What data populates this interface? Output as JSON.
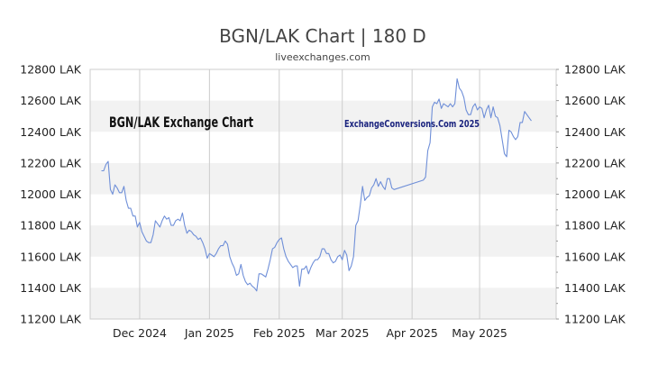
{
  "title": "BGN/LAK Chart | 180 D",
  "subtitle": "liveexchanges.com",
  "watermark_left": "BGN/LAK Exchange Chart",
  "watermark_right": "ExchangeConversions.Com 2025",
  "colors": {
    "line": "#6f8fd8",
    "band": "#f2f2f2",
    "grid": "#cccccc",
    "axis": "#999999"
  },
  "chart_data": {
    "type": "line",
    "title": "BGN/LAK Chart | 180 D",
    "ylim": [
      11200,
      12800
    ],
    "yticks": [
      11200,
      11400,
      11600,
      11800,
      12000,
      12200,
      12400,
      12600,
      12800
    ],
    "ytick_labels": [
      "11200 LAK",
      "11400 LAK",
      "11600 LAK",
      "11800 LAK",
      "12000 LAK",
      "12200 LAK",
      "12400 LAK",
      "12600 LAK",
      "12800 LAK"
    ],
    "xlim": [
      "2024-11-09",
      "2025-06-04"
    ],
    "xticks": [
      {
        "date": "2024-12-01",
        "label": "Dec 2024"
      },
      {
        "date": "2025-01-01",
        "label": "Jan 2025"
      },
      {
        "date": "2025-02-01",
        "label": "Feb 2025"
      },
      {
        "date": "2025-03-01",
        "label": "Mar 2025"
      },
      {
        "date": "2025-04-01",
        "label": "Apr 2025"
      },
      {
        "date": "2025-05-01",
        "label": "May 2025"
      }
    ],
    "grid": true,
    "series": [
      {
        "points": [
          [
            "2024-11-14",
            12150
          ],
          [
            "2024-11-15",
            12150
          ],
          [
            "2024-11-16",
            12190
          ],
          [
            "2024-11-17",
            12210
          ],
          [
            "2024-11-18",
            12030
          ],
          [
            "2024-11-19",
            12000
          ],
          [
            "2024-11-20",
            12060
          ],
          [
            "2024-11-21",
            12040
          ],
          [
            "2024-11-22",
            12010
          ],
          [
            "2024-11-23",
            12010
          ],
          [
            "2024-11-24",
            12050
          ],
          [
            "2024-11-25",
            11960
          ],
          [
            "2024-11-26",
            11910
          ],
          [
            "2024-11-27",
            11910
          ],
          [
            "2024-11-28",
            11860
          ],
          [
            "2024-11-29",
            11860
          ],
          [
            "2024-11-30",
            11790
          ],
          [
            "2024-12-01",
            11820
          ],
          [
            "2024-12-02",
            11760
          ],
          [
            "2024-12-03",
            11730
          ],
          [
            "2024-12-04",
            11700
          ],
          [
            "2024-12-05",
            11690
          ],
          [
            "2024-12-06",
            11690
          ],
          [
            "2024-12-07",
            11740
          ],
          [
            "2024-12-08",
            11830
          ],
          [
            "2024-12-09",
            11810
          ],
          [
            "2024-12-10",
            11790
          ],
          [
            "2024-12-11",
            11830
          ],
          [
            "2024-12-12",
            11860
          ],
          [
            "2024-12-13",
            11840
          ],
          [
            "2024-12-14",
            11850
          ],
          [
            "2024-12-15",
            11800
          ],
          [
            "2024-12-16",
            11800
          ],
          [
            "2024-12-17",
            11830
          ],
          [
            "2024-12-18",
            11840
          ],
          [
            "2024-12-19",
            11830
          ],
          [
            "2024-12-20",
            11880
          ],
          [
            "2024-12-21",
            11800
          ],
          [
            "2024-12-22",
            11750
          ],
          [
            "2024-12-23",
            11770
          ],
          [
            "2024-12-24",
            11760
          ],
          [
            "2024-12-25",
            11740
          ],
          [
            "2024-12-26",
            11730
          ],
          [
            "2024-12-27",
            11710
          ],
          [
            "2024-12-28",
            11720
          ],
          [
            "2024-12-29",
            11690
          ],
          [
            "2024-12-30",
            11650
          ],
          [
            "2024-12-31",
            11590
          ],
          [
            "2025-01-01",
            11620
          ],
          [
            "2025-01-02",
            11610
          ],
          [
            "2025-01-03",
            11600
          ],
          [
            "2025-01-04",
            11620
          ],
          [
            "2025-01-05",
            11650
          ],
          [
            "2025-01-06",
            11670
          ],
          [
            "2025-01-07",
            11670
          ],
          [
            "2025-01-08",
            11700
          ],
          [
            "2025-01-09",
            11680
          ],
          [
            "2025-01-10",
            11600
          ],
          [
            "2025-01-11",
            11560
          ],
          [
            "2025-01-12",
            11530
          ],
          [
            "2025-01-13",
            11480
          ],
          [
            "2025-01-14",
            11490
          ],
          [
            "2025-01-15",
            11550
          ],
          [
            "2025-01-16",
            11480
          ],
          [
            "2025-01-17",
            11440
          ],
          [
            "2025-01-18",
            11420
          ],
          [
            "2025-01-19",
            11430
          ],
          [
            "2025-01-20",
            11410
          ],
          [
            "2025-01-21",
            11400
          ],
          [
            "2025-01-22",
            11380
          ],
          [
            "2025-01-23",
            11490
          ],
          [
            "2025-01-24",
            11490
          ],
          [
            "2025-01-25",
            11480
          ],
          [
            "2025-01-26",
            11470
          ],
          [
            "2025-01-27",
            11520
          ],
          [
            "2025-01-28",
            11580
          ],
          [
            "2025-01-29",
            11650
          ],
          [
            "2025-01-30",
            11660
          ],
          [
            "2025-01-31",
            11690
          ],
          [
            "2025-02-01",
            11710
          ],
          [
            "2025-02-02",
            11720
          ],
          [
            "2025-02-03",
            11650
          ],
          [
            "2025-02-04",
            11600
          ],
          [
            "2025-02-05",
            11570
          ],
          [
            "2025-02-06",
            11550
          ],
          [
            "2025-02-07",
            11530
          ],
          [
            "2025-02-08",
            11540
          ],
          [
            "2025-02-09",
            11540
          ],
          [
            "2025-02-10",
            11410
          ],
          [
            "2025-02-11",
            11520
          ],
          [
            "2025-02-12",
            11520
          ],
          [
            "2025-02-13",
            11540
          ],
          [
            "2025-02-14",
            11490
          ],
          [
            "2025-02-15",
            11530
          ],
          [
            "2025-02-16",
            11560
          ],
          [
            "2025-02-17",
            11580
          ],
          [
            "2025-02-18",
            11580
          ],
          [
            "2025-02-19",
            11600
          ],
          [
            "2025-02-20",
            11650
          ],
          [
            "2025-02-21",
            11650
          ],
          [
            "2025-02-22",
            11620
          ],
          [
            "2025-02-23",
            11620
          ],
          [
            "2025-02-24",
            11580
          ],
          [
            "2025-02-25",
            11560
          ],
          [
            "2025-02-26",
            11570
          ],
          [
            "2025-02-27",
            11600
          ],
          [
            "2025-02-28",
            11610
          ],
          [
            "2025-03-01",
            11580
          ],
          [
            "2025-03-02",
            11640
          ],
          [
            "2025-03-03",
            11610
          ],
          [
            "2025-03-04",
            11510
          ],
          [
            "2025-03-05",
            11540
          ],
          [
            "2025-03-06",
            11600
          ],
          [
            "2025-03-07",
            11800
          ],
          [
            "2025-03-08",
            11830
          ],
          [
            "2025-03-09",
            11930
          ],
          [
            "2025-03-10",
            12050
          ],
          [
            "2025-03-11",
            11960
          ],
          [
            "2025-03-12",
            11980
          ],
          [
            "2025-03-13",
            11990
          ],
          [
            "2025-03-14",
            12040
          ],
          [
            "2025-03-15",
            12060
          ],
          [
            "2025-03-16",
            12100
          ],
          [
            "2025-03-17",
            12050
          ],
          [
            "2025-03-18",
            12080
          ],
          [
            "2025-03-19",
            12050
          ],
          [
            "2025-03-20",
            12030
          ],
          [
            "2025-03-21",
            12100
          ],
          [
            "2025-03-22",
            12100
          ],
          [
            "2025-03-23",
            12040
          ],
          [
            "2025-03-24",
            12030
          ],
          [
            "2025-04-06",
            12090
          ],
          [
            "2025-04-07",
            12110
          ],
          [
            "2025-04-08",
            12280
          ],
          [
            "2025-04-09",
            12330
          ],
          [
            "2025-04-10",
            12560
          ],
          [
            "2025-04-11",
            12590
          ],
          [
            "2025-04-12",
            12580
          ],
          [
            "2025-04-13",
            12610
          ],
          [
            "2025-04-14",
            12550
          ],
          [
            "2025-04-15",
            12580
          ],
          [
            "2025-04-16",
            12570
          ],
          [
            "2025-04-17",
            12560
          ],
          [
            "2025-04-18",
            12580
          ],
          [
            "2025-04-19",
            12560
          ],
          [
            "2025-04-20",
            12580
          ],
          [
            "2025-04-21",
            12740
          ],
          [
            "2025-04-22",
            12680
          ],
          [
            "2025-04-23",
            12660
          ],
          [
            "2025-04-24",
            12620
          ],
          [
            "2025-04-25",
            12540
          ],
          [
            "2025-04-26",
            12510
          ],
          [
            "2025-04-27",
            12510
          ],
          [
            "2025-04-28",
            12560
          ],
          [
            "2025-04-29",
            12580
          ],
          [
            "2025-04-30",
            12540
          ],
          [
            "2025-05-01",
            12560
          ],
          [
            "2025-05-02",
            12550
          ],
          [
            "2025-05-03",
            12490
          ],
          [
            "2025-05-04",
            12540
          ],
          [
            "2025-05-05",
            12570
          ],
          [
            "2025-05-06",
            12490
          ],
          [
            "2025-05-07",
            12560
          ],
          [
            "2025-05-08",
            12500
          ],
          [
            "2025-05-09",
            12490
          ],
          [
            "2025-05-10",
            12440
          ],
          [
            "2025-05-11",
            12350
          ],
          [
            "2025-05-12",
            12260
          ],
          [
            "2025-05-13",
            12240
          ],
          [
            "2025-05-14",
            12410
          ],
          [
            "2025-05-15",
            12400
          ],
          [
            "2025-05-16",
            12370
          ],
          [
            "2025-05-17",
            12350
          ],
          [
            "2025-05-18",
            12370
          ],
          [
            "2025-05-19",
            12460
          ],
          [
            "2025-05-20",
            12460
          ],
          [
            "2025-05-21",
            12530
          ],
          [
            "2025-05-22",
            12510
          ],
          [
            "2025-05-23",
            12490
          ],
          [
            "2025-05-24",
            12470
          ]
        ]
      }
    ]
  }
}
